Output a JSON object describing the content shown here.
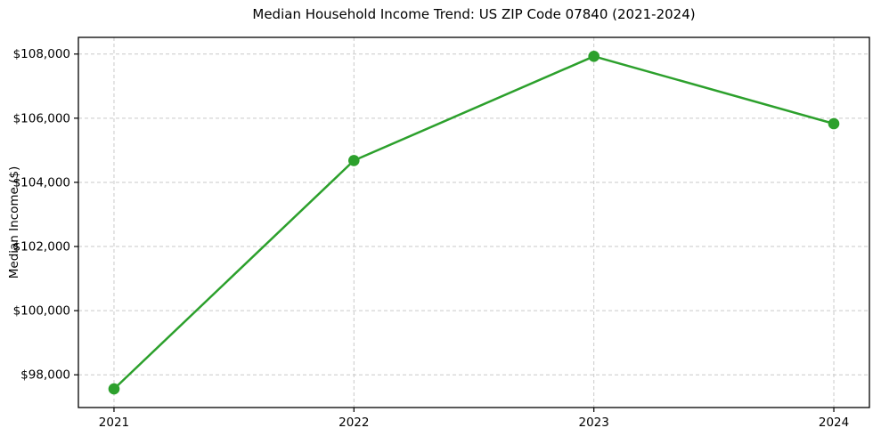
{
  "chart_data": {
    "type": "line",
    "title": "Median Household Income Trend: US ZIP Code 07840 (2021-2024)",
    "xlabel": "",
    "ylabel": "Median Income ($)",
    "categories": [
      "2021",
      "2022",
      "2023",
      "2024"
    ],
    "series": [
      {
        "name": "Median Household Income",
        "values": [
          97560,
          104680,
          107930,
          105830
        ]
      }
    ],
    "ylim": [
      96980,
      108520
    ],
    "yticks": [
      {
        "value": 98000,
        "label": "$98,000"
      },
      {
        "value": 100000,
        "label": "$100,000"
      },
      {
        "value": 102000,
        "label": "$102,000"
      },
      {
        "value": 104000,
        "label": "$104,000"
      },
      {
        "value": 106000,
        "label": "$106,000"
      },
      {
        "value": 108000,
        "label": "$108,000"
      }
    ],
    "grid": true,
    "legend": "none",
    "colors": {
      "line": "#2ca02c",
      "marker": "#2ca02c",
      "grid": "#c9c9c9",
      "spine": "#000000",
      "background": "#ffffff",
      "text": "#000000"
    }
  }
}
